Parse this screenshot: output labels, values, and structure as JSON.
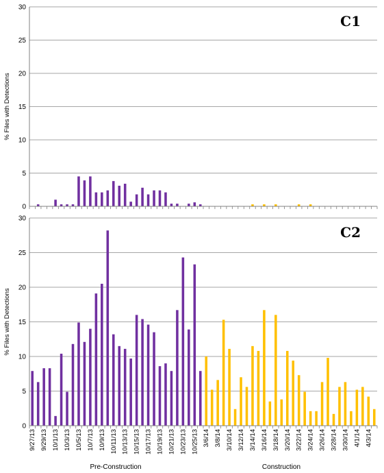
{
  "colors": {
    "pre": "#7030A0",
    "construction": "#FFC000",
    "grid": "#A6A6A6",
    "axis": "#808080"
  },
  "x_labels": [
    "9/27/13",
    "9/29/13",
    "10/1/13",
    "10/3/13",
    "10/5/13",
    "10/7/13",
    "10/9/13",
    "10/11/13",
    "10/13/13",
    "10/15/13",
    "10/17/13",
    "10/19/13",
    "10/21/13",
    "10/23/13",
    "10/25/13",
    "3/6/14",
    "3/8/14",
    "3/10/14",
    "3/12/14",
    "3/14/14",
    "3/16/14",
    "3/18/14",
    "3/20/14",
    "3/22/14",
    "3/24/14",
    "3/26/14",
    "3/28/14",
    "3/30/14",
    "4/1/14",
    "4/3/14"
  ],
  "group_labels": {
    "pre": "Pre-Construction",
    "construction": "Construction"
  },
  "chart_data": [
    {
      "type": "bar",
      "panel_label": "C1",
      "ylabel": "% Files with Detections",
      "ylim": [
        0,
        30
      ],
      "yticks": [
        0,
        5,
        10,
        15,
        20,
        25,
        30
      ],
      "grid": true,
      "categories_pre": [
        "9/27/13",
        "9/28/13",
        "9/29/13",
        "9/30/13",
        "10/1/13",
        "10/2/13",
        "10/3/13",
        "10/4/13",
        "10/5/13",
        "10/6/13",
        "10/7/13",
        "10/8/13",
        "10/9/13",
        "10/10/13",
        "10/11/13",
        "10/12/13",
        "10/13/13",
        "10/14/13",
        "10/15/13",
        "10/16/13",
        "10/17/13",
        "10/18/13",
        "10/19/13",
        "10/20/13",
        "10/21/13",
        "10/22/13",
        "10/23/13",
        "10/24/13",
        "10/25/13",
        "10/26/13"
      ],
      "categories_construction": [
        "3/6/14",
        "3/7/14",
        "3/8/14",
        "3/9/14",
        "3/10/14",
        "3/11/14",
        "3/12/14",
        "3/13/14",
        "3/14/14",
        "3/15/14",
        "3/16/14",
        "3/17/14",
        "3/18/14",
        "3/19/14",
        "3/20/14",
        "3/21/14",
        "3/22/14",
        "3/23/14",
        "3/24/14",
        "3/25/14",
        "3/26/14",
        "3/27/14",
        "3/28/14",
        "3/29/14",
        "3/30/14",
        "3/31/14",
        "4/1/14",
        "4/2/14",
        "4/3/14",
        "4/4/14"
      ],
      "values_pre": [
        0,
        0.3,
        0,
        0,
        1.0,
        0.3,
        0.3,
        0.3,
        4.5,
        3.9,
        4.5,
        2.1,
        2.1,
        2.4,
        3.8,
        3.1,
        3.4,
        0.7,
        1.8,
        2.8,
        1.8,
        2.4,
        2.4,
        2.1,
        0.4,
        0.4,
        0,
        0.4,
        0.6,
        0.3
      ],
      "values_construction": [
        0,
        0,
        0,
        0,
        0,
        0,
        0,
        0,
        0.3,
        0,
        0.3,
        0,
        0.3,
        0,
        0,
        0,
        0.3,
        0,
        0.3,
        0,
        0,
        0,
        0,
        0,
        0,
        0,
        0,
        0,
        0,
        0
      ]
    },
    {
      "type": "bar",
      "panel_label": "C2",
      "ylabel": "% Files with Detections",
      "ylim": [
        0,
        30
      ],
      "yticks": [
        0,
        5,
        10,
        15,
        20,
        25,
        30
      ],
      "grid": true,
      "categories_pre": [
        "9/27/13",
        "9/28/13",
        "9/29/13",
        "9/30/13",
        "10/1/13",
        "10/2/13",
        "10/3/13",
        "10/4/13",
        "10/5/13",
        "10/6/13",
        "10/7/13",
        "10/8/13",
        "10/9/13",
        "10/10/13",
        "10/11/13",
        "10/12/13",
        "10/13/13",
        "10/14/13",
        "10/15/13",
        "10/16/13",
        "10/17/13",
        "10/18/13",
        "10/19/13",
        "10/20/13",
        "10/21/13",
        "10/22/13",
        "10/23/13",
        "10/24/13",
        "10/25/13",
        "10/26/13"
      ],
      "categories_construction": [
        "3/6/14",
        "3/7/14",
        "3/8/14",
        "3/9/14",
        "3/10/14",
        "3/11/14",
        "3/12/14",
        "3/13/14",
        "3/14/14",
        "3/15/14",
        "3/16/14",
        "3/17/14",
        "3/18/14",
        "3/19/14",
        "3/20/14",
        "3/21/14",
        "3/22/14",
        "3/23/14",
        "3/24/14",
        "3/25/14",
        "3/26/14",
        "3/27/14",
        "3/28/14",
        "3/29/14",
        "3/30/14",
        "3/31/14",
        "4/1/14",
        "4/2/14",
        "4/3/14",
        "4/4/14"
      ],
      "values_pre": [
        7.9,
        6.3,
        8.3,
        8.3,
        1.4,
        10.4,
        4.9,
        11.8,
        14.9,
        12.1,
        14.0,
        19.1,
        20.5,
        28.2,
        13.2,
        11.5,
        11.1,
        9.7,
        16.0,
        15.4,
        14.6,
        13.5,
        8.6,
        9.0,
        7.9,
        16.7,
        24.3,
        13.9,
        23.3,
        7.9
      ],
      "values_construction": [
        10.0,
        5.2,
        6.6,
        15.3,
        11.1,
        2.4,
        7.0,
        5.6,
        11.5,
        10.8,
        16.7,
        3.5,
        16.0,
        3.8,
        10.8,
        9.4,
        7.3,
        4.9,
        2.1,
        2.1,
        6.3,
        9.8,
        1.7,
        5.6,
        6.3,
        2.1,
        5.2,
        5.6,
        4.2,
        2.4
      ]
    }
  ]
}
